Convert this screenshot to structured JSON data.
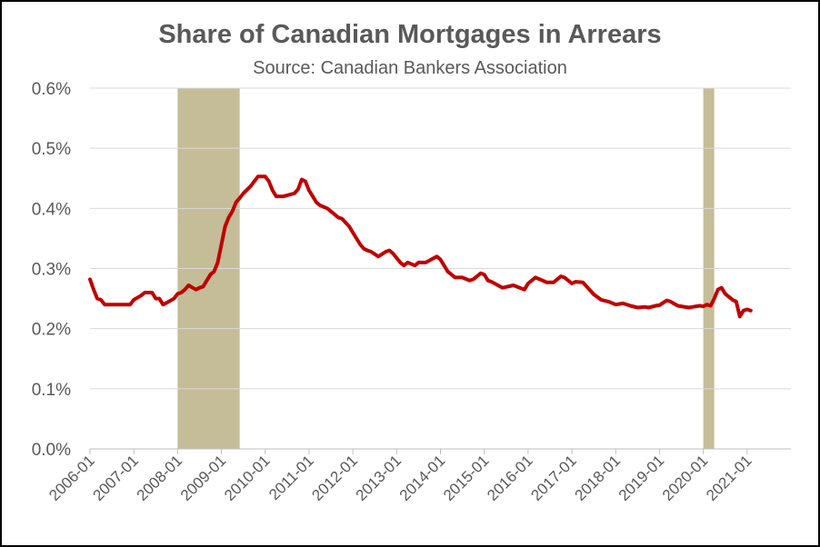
{
  "chart_data": {
    "type": "line",
    "title": "Share of Canadian Mortgages in Arrears",
    "subtitle": "Source:  Canadian Bankers Association",
    "xlabel": "",
    "ylabel": "",
    "x_ticks": [
      "2006-01",
      "2007-01",
      "2008-01",
      "2009-01",
      "2010-01",
      "2011-01",
      "2012-01",
      "2013-01",
      "2014-01",
      "2015-01",
      "2016-01",
      "2017-01",
      "2018-01",
      "2019-01",
      "2020-01",
      "2021-01"
    ],
    "y_ticks": [
      "0.0%",
      "0.1%",
      "0.2%",
      "0.3%",
      "0.4%",
      "0.5%",
      "0.6%"
    ],
    "ylim": [
      0,
      0.6
    ],
    "xlim": [
      "2006-01",
      "2022-01"
    ],
    "grid": "horizontal",
    "colors": {
      "line": "#C00000",
      "recession": "#C4BD97",
      "grid": "#D9D9D9",
      "text": "#595959"
    },
    "recession_bands": [
      {
        "start": "2008-01",
        "end": "2009-06"
      },
      {
        "start": "2020-01",
        "end": "2020-04"
      }
    ],
    "series": [
      {
        "name": "",
        "x": [
          "2006-01",
          "2006-02",
          "2006-03",
          "2006-04",
          "2006-05",
          "2006-06",
          "2006-09",
          "2006-12",
          "2007-01",
          "2007-03",
          "2007-04",
          "2007-06",
          "2007-07",
          "2007-08",
          "2007-09",
          "2007-10",
          "2007-12",
          "2008-01",
          "2008-02",
          "2008-03",
          "2008-04",
          "2008-06",
          "2008-07",
          "2008-08",
          "2008-09",
          "2008-10",
          "2008-11",
          "2008-12",
          "2009-01",
          "2009-02",
          "2009-03",
          "2009-04",
          "2009-05",
          "2009-06",
          "2009-07",
          "2009-09",
          "2009-11",
          "2010-01",
          "2010-02",
          "2010-03",
          "2010-04",
          "2010-06",
          "2010-09",
          "2010-10",
          "2010-11",
          "2010-12",
          "2011-01",
          "2011-02",
          "2011-03",
          "2011-04",
          "2011-06",
          "2011-09",
          "2011-10",
          "2011-12",
          "2012-02",
          "2012-03",
          "2012-04",
          "2012-05",
          "2012-06",
          "2012-08",
          "2012-10",
          "2012-11",
          "2012-12",
          "2013-02",
          "2013-03",
          "2013-04",
          "2013-06",
          "2013-07",
          "2013-09",
          "2013-12",
          "2014-01",
          "2014-02",
          "2014-03",
          "2014-04",
          "2014-05",
          "2014-07",
          "2014-09",
          "2014-10",
          "2014-11",
          "2014-12",
          "2015-01",
          "2015-02",
          "2015-03",
          "2015-06",
          "2015-09",
          "2015-12",
          "2016-01",
          "2016-03",
          "2016-05",
          "2016-06",
          "2016-08",
          "2016-10",
          "2016-11",
          "2017-01",
          "2017-02",
          "2017-04",
          "2017-07",
          "2017-09",
          "2017-11",
          "2018-01",
          "2018-03",
          "2018-05",
          "2018-07",
          "2018-09",
          "2018-10",
          "2018-12",
          "2019-01",
          "2019-03",
          "2019-04",
          "2019-06",
          "2019-09",
          "2019-12",
          "2020-01",
          "2020-02",
          "2020-03",
          "2020-04",
          "2020-05",
          "2020-06",
          "2020-07",
          "2020-09",
          "2020-10",
          "2020-11",
          "2020-12",
          "2021-01",
          "2021-02"
        ],
        "values": [
          0.282,
          0.265,
          0.25,
          0.248,
          0.24,
          0.24,
          0.24,
          0.24,
          0.248,
          0.255,
          0.26,
          0.26,
          0.25,
          0.25,
          0.24,
          0.243,
          0.25,
          0.258,
          0.26,
          0.265,
          0.272,
          0.265,
          0.268,
          0.27,
          0.28,
          0.29,
          0.295,
          0.31,
          0.34,
          0.37,
          0.385,
          0.395,
          0.41,
          0.417,
          0.425,
          0.437,
          0.453,
          0.453,
          0.445,
          0.43,
          0.42,
          0.42,
          0.425,
          0.432,
          0.448,
          0.445,
          0.43,
          0.42,
          0.41,
          0.405,
          0.4,
          0.385,
          0.383,
          0.37,
          0.35,
          0.34,
          0.333,
          0.33,
          0.328,
          0.32,
          0.328,
          0.33,
          0.325,
          0.31,
          0.305,
          0.31,
          0.305,
          0.31,
          0.31,
          0.32,
          0.315,
          0.305,
          0.295,
          0.29,
          0.285,
          0.285,
          0.28,
          0.282,
          0.287,
          0.292,
          0.29,
          0.28,
          0.278,
          0.268,
          0.272,
          0.265,
          0.275,
          0.285,
          0.28,
          0.277,
          0.277,
          0.287,
          0.285,
          0.275,
          0.278,
          0.277,
          0.257,
          0.248,
          0.245,
          0.24,
          0.242,
          0.238,
          0.235,
          0.236,
          0.235,
          0.238,
          0.239,
          0.247,
          0.245,
          0.238,
          0.235,
          0.238,
          0.237,
          0.24,
          0.238,
          0.25,
          0.265,
          0.268,
          0.258,
          0.248,
          0.245,
          0.22,
          0.23,
          0.232,
          0.23
        ]
      }
    ]
  }
}
